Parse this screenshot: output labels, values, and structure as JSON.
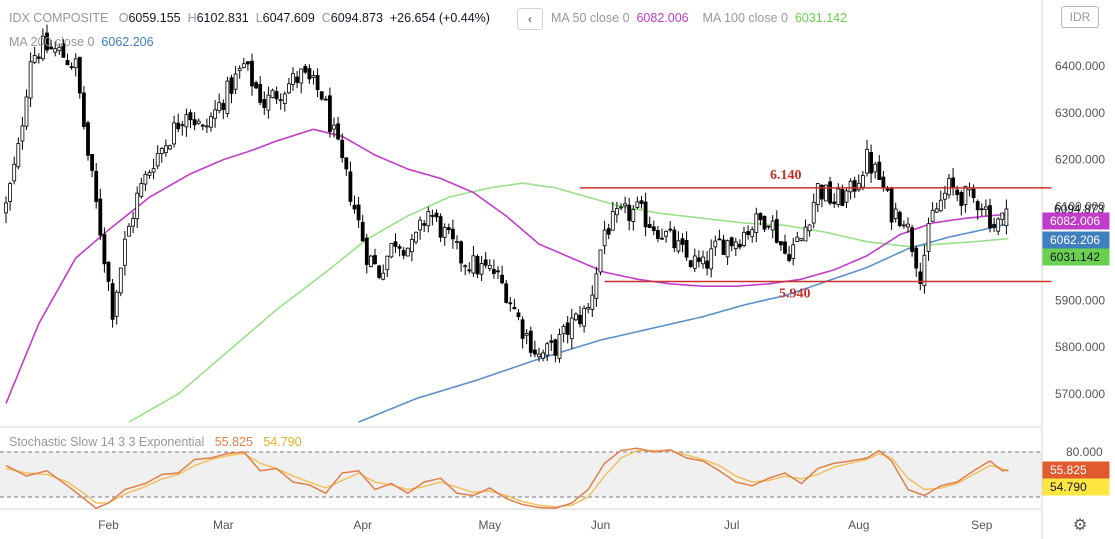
{
  "header": {
    "symbol": "IDX COMPOSITE",
    "o_label": "O",
    "o_value": "6059.155",
    "h_label": "H",
    "h_value": "6102.831",
    "l_label": "L",
    "l_value": "6047.609",
    "c_label": "C",
    "c_value": "6094.873",
    "change": "+26.654 (+0.44%)",
    "ma50_label": "MA 50 close 0",
    "ma50_value": "6082.006",
    "ma100_label": "MA 100 close 0",
    "ma100_value": "6031.142",
    "ma200_label": "MA 200 close 0",
    "ma200_value": "6062.206",
    "back_icon": "chevron-left-icon",
    "back_glyph": "‹"
  },
  "currency": "IDR",
  "stochastic": {
    "label": "Stochastic Slow 14 3 3 Exponential",
    "k_value": "55.825",
    "d_value": "54.790"
  },
  "settings_icon": "gear-icon",
  "settings_glyph": "⚙",
  "colors": {
    "up": "#ffffff",
    "down": "#000000",
    "ma50": "#c03cc9",
    "ma100": "#9ae08a",
    "ma200": "#5b90c9",
    "level": "#c9302c",
    "stoch_k": "#e07f4a",
    "stoch_d": "#f3c060",
    "last_price": "#ffffff",
    "ma50_tag": "#c03cc9",
    "ma200_tag": "#3f7fc0",
    "ma100_tag": "#6ad150",
    "stoch_k_tag": "#e0592f",
    "stoch_d_tag": "#ffe640"
  },
  "chart_data": [
    {
      "type": "candlestick",
      "title": "IDX COMPOSITE",
      "ylim": [
        5640,
        6500
      ],
      "y_ticks": [
        "6400.000",
        "6300.000",
        "6200.000",
        "6100.000",
        "5900.000",
        "5800.000",
        "5700.000"
      ],
      "x_tick_labels": [
        "Feb",
        "Mar",
        "Apr",
        "May",
        "Jun",
        "Jul",
        "Aug",
        "Sep"
      ],
      "last_price_label": "6094.873",
      "ma_tags": [
        {
          "name": "MA 50",
          "label": "6082.006",
          "value": 6082.006
        },
        {
          "name": "MA 200",
          "label": "6062.206",
          "value": 6062.206
        },
        {
          "name": "MA 100",
          "label": "6031.142",
          "value": 6031.142
        }
      ],
      "levels": [
        {
          "value": 6140,
          "label": "6.140",
          "from_candle": 140,
          "to_candle": 255
        },
        {
          "value": 5940,
          "label": "5.940",
          "from_candle": 146,
          "to_candle": 255
        }
      ],
      "month_starts": {
        "Feb": 25,
        "Mar": 53,
        "Apr": 87,
        "May": 118,
        "Jun": 145,
        "Jul": 177,
        "Aug": 208,
        "Sep": 238
      },
      "waypoints_close": [
        [
          0,
          6100
        ],
        [
          3,
          6220
        ],
        [
          6,
          6420
        ],
        [
          9,
          6440
        ],
        [
          13,
          6430
        ],
        [
          17,
          6400
        ],
        [
          20,
          6210
        ],
        [
          23,
          6050
        ],
        [
          26,
          5880
        ],
        [
          29,
          6020
        ],
        [
          32,
          6120
        ],
        [
          36,
          6200
        ],
        [
          40,
          6250
        ],
        [
          44,
          6310
        ],
        [
          48,
          6260
        ],
        [
          53,
          6330
        ],
        [
          58,
          6400
        ],
        [
          63,
          6320
        ],
        [
          67,
          6350
        ],
        [
          72,
          6380
        ],
        [
          77,
          6340
        ],
        [
          80,
          6250
        ],
        [
          84,
          6130
        ],
        [
          88,
          6000
        ],
        [
          91,
          5960
        ],
        [
          95,
          6030
        ],
        [
          99,
          6010
        ],
        [
          103,
          6090
        ],
        [
          107,
          6040
        ],
        [
          111,
          5990
        ],
        [
          115,
          5970
        ],
        [
          119,
          5960
        ],
        [
          122,
          5920
        ],
        [
          126,
          5840
        ],
        [
          130,
          5780
        ],
        [
          134,
          5800
        ],
        [
          138,
          5850
        ],
        [
          142,
          5880
        ],
        [
          146,
          6050
        ],
        [
          150,
          6080
        ],
        [
          154,
          6090
        ],
        [
          158,
          6060
        ],
        [
          162,
          6030
        ],
        [
          166,
          5990
        ],
        [
          170,
          5970
        ],
        [
          174,
          6020
        ],
        [
          178,
          6030
        ],
        [
          182,
          6060
        ],
        [
          186,
          6080
        ],
        [
          190,
          6000
        ],
        [
          194,
          6030
        ],
        [
          198,
          6140
        ],
        [
          202,
          6110
        ],
        [
          206,
          6130
        ],
        [
          210,
          6200
        ],
        [
          213,
          6160
        ],
        [
          216,
          6090
        ],
        [
          219,
          6080
        ],
        [
          223,
          5960
        ],
        [
          226,
          6080
        ],
        [
          230,
          6140
        ],
        [
          234,
          6120
        ],
        [
          238,
          6110
        ],
        [
          241,
          6060
        ],
        [
          243,
          6070
        ],
        [
          244,
          6094.873
        ]
      ],
      "candle_count": 245,
      "ma50": {
        "name": "MA 50 close 0",
        "waypoints": [
          [
            0,
            5680
          ],
          [
            8,
            5850
          ],
          [
            17,
            5990
          ],
          [
            25,
            6050
          ],
          [
            35,
            6120
          ],
          [
            45,
            6170
          ],
          [
            53,
            6200
          ],
          [
            60,
            6220
          ],
          [
            66,
            6240
          ],
          [
            75,
            6265
          ],
          [
            82,
            6250
          ],
          [
            90,
            6210
          ],
          [
            98,
            6180
          ],
          [
            106,
            6160
          ],
          [
            114,
            6130
          ],
          [
            122,
            6080
          ],
          [
            130,
            6020
          ],
          [
            138,
            5990
          ],
          [
            146,
            5960
          ],
          [
            154,
            5945
          ],
          [
            162,
            5935
          ],
          [
            170,
            5930
          ],
          [
            178,
            5930
          ],
          [
            186,
            5935
          ],
          [
            194,
            5945
          ],
          [
            202,
            5965
          ],
          [
            210,
            5995
          ],
          [
            218,
            6040
          ],
          [
            226,
            6065
          ],
          [
            234,
            6075
          ],
          [
            242,
            6082
          ],
          [
            244,
            6082.006
          ]
        ]
      },
      "ma100": {
        "name": "MA 100 close 0",
        "waypoints": [
          [
            30,
            5640
          ],
          [
            42,
            5700
          ],
          [
            54,
            5790
          ],
          [
            66,
            5880
          ],
          [
            78,
            5960
          ],
          [
            88,
            6030
          ],
          [
            98,
            6080
          ],
          [
            108,
            6120
          ],
          [
            118,
            6140
          ],
          [
            126,
            6150
          ],
          [
            134,
            6140
          ],
          [
            142,
            6120
          ],
          [
            150,
            6100
          ],
          [
            160,
            6085
          ],
          [
            170,
            6075
          ],
          [
            180,
            6065
          ],
          [
            190,
            6060
          ],
          [
            200,
            6045
          ],
          [
            210,
            6025
          ],
          [
            220,
            6015
          ],
          [
            228,
            6020
          ],
          [
            236,
            6025
          ],
          [
            244,
            6031.142
          ]
        ]
      },
      "ma200": {
        "name": "MA 200 close 0",
        "waypoints": [
          [
            86,
            5640
          ],
          [
            100,
            5690
          ],
          [
            115,
            5730
          ],
          [
            130,
            5775
          ],
          [
            145,
            5815
          ],
          [
            160,
            5845
          ],
          [
            170,
            5865
          ],
          [
            180,
            5890
          ],
          [
            190,
            5910
          ],
          [
            200,
            5940
          ],
          [
            210,
            5970
          ],
          [
            220,
            6010
          ],
          [
            230,
            6035
          ],
          [
            238,
            6050
          ],
          [
            244,
            6062.206
          ]
        ]
      }
    },
    {
      "type": "line",
      "title": "Stochastic Slow 14 3 3 Exponential",
      "ylim": [
        0,
        100
      ],
      "y_ticks": [
        "80.000"
      ],
      "bands": [
        20,
        80
      ],
      "series": [
        {
          "name": "%K",
          "waypoints": [
            [
              0,
              62
            ],
            [
              5,
              48
            ],
            [
              10,
              55
            ],
            [
              15,
              35
            ],
            [
              19,
              18
            ],
            [
              22,
              5
            ],
            [
              25,
              12
            ],
            [
              29,
              30
            ],
            [
              34,
              38
            ],
            [
              38,
              50
            ],
            [
              42,
              52
            ],
            [
              46,
              70
            ],
            [
              50,
              72
            ],
            [
              54,
              78
            ],
            [
              58,
              80
            ],
            [
              62,
              55
            ],
            [
              66,
              58
            ],
            [
              70,
              40
            ],
            [
              74,
              36
            ],
            [
              78,
              25
            ],
            [
              82,
              52
            ],
            [
              86,
              55
            ],
            [
              90,
              30
            ],
            [
              94,
              38
            ],
            [
              98,
              25
            ],
            [
              102,
              40
            ],
            [
              106,
              45
            ],
            [
              110,
              25
            ],
            [
              114,
              22
            ],
            [
              118,
              32
            ],
            [
              122,
              18
            ],
            [
              126,
              10
            ],
            [
              130,
              6
            ],
            [
              134,
              5
            ],
            [
              138,
              12
            ],
            [
              142,
              30
            ],
            [
              146,
              65
            ],
            [
              150,
              82
            ],
            [
              154,
              85
            ],
            [
              158,
              80
            ],
            [
              162,
              83
            ],
            [
              166,
              72
            ],
            [
              170,
              68
            ],
            [
              174,
              55
            ],
            [
              178,
              40
            ],
            [
              182,
              35
            ],
            [
              186,
              45
            ],
            [
              190,
              52
            ],
            [
              194,
              38
            ],
            [
              198,
              58
            ],
            [
              202,
              65
            ],
            [
              206,
              68
            ],
            [
              210,
              72
            ],
            [
              213,
              82
            ],
            [
              216,
              68
            ],
            [
              220,
              30
            ],
            [
              224,
              22
            ],
            [
              228,
              35
            ],
            [
              232,
              40
            ],
            [
              236,
              55
            ],
            [
              240,
              68
            ],
            [
              243,
              55
            ],
            [
              244,
              55.825
            ]
          ]
        },
        {
          "name": "%D",
          "waypoints": [
            [
              0,
              58
            ],
            [
              5,
              52
            ],
            [
              10,
              50
            ],
            [
              15,
              40
            ],
            [
              19,
              25
            ],
            [
              22,
              12
            ],
            [
              25,
              12
            ],
            [
              29,
              24
            ],
            [
              34,
              34
            ],
            [
              38,
              44
            ],
            [
              42,
              50
            ],
            [
              46,
              62
            ],
            [
              50,
              70
            ],
            [
              54,
              75
            ],
            [
              58,
              78
            ],
            [
              62,
              65
            ],
            [
              66,
              58
            ],
            [
              70,
              48
            ],
            [
              74,
              40
            ],
            [
              78,
              32
            ],
            [
              82,
              42
            ],
            [
              86,
              52
            ],
            [
              90,
              40
            ],
            [
              94,
              36
            ],
            [
              98,
              30
            ],
            [
              102,
              34
            ],
            [
              106,
              40
            ],
            [
              110,
              33
            ],
            [
              114,
              26
            ],
            [
              118,
              28
            ],
            [
              122,
              22
            ],
            [
              126,
              14
            ],
            [
              130,
              9
            ],
            [
              134,
              7
            ],
            [
              138,
              9
            ],
            [
              142,
              20
            ],
            [
              146,
              48
            ],
            [
              150,
              72
            ],
            [
              154,
              82
            ],
            [
              158,
              82
            ],
            [
              162,
              82
            ],
            [
              166,
              76
            ],
            [
              170,
              70
            ],
            [
              174,
              62
            ],
            [
              178,
              48
            ],
            [
              182,
              40
            ],
            [
              186,
              42
            ],
            [
              190,
              48
            ],
            [
              194,
              44
            ],
            [
              198,
              50
            ],
            [
              202,
              60
            ],
            [
              206,
              65
            ],
            [
              210,
              70
            ],
            [
              213,
              78
            ],
            [
              216,
              72
            ],
            [
              220,
              45
            ],
            [
              224,
              30
            ],
            [
              228,
              32
            ],
            [
              232,
              38
            ],
            [
              236,
              50
            ],
            [
              240,
              62
            ],
            [
              243,
              58
            ],
            [
              244,
              54.79
            ]
          ]
        }
      ]
    }
  ]
}
